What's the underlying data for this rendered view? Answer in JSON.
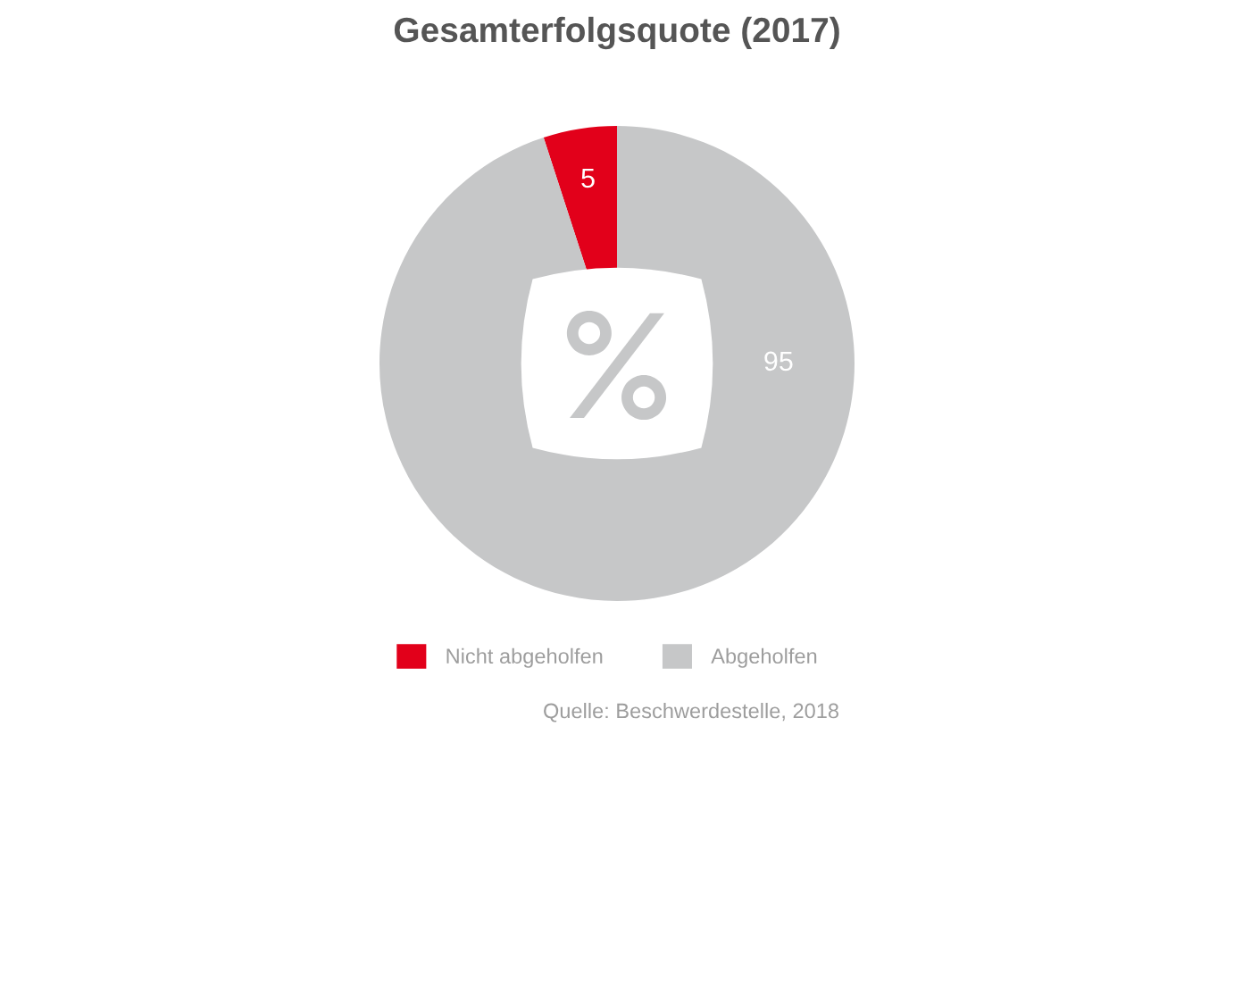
{
  "chart_data": {
    "type": "pie",
    "title": "Gesamterfolgsquote (2017)",
    "categories": [
      "Nicht abgeholfen",
      "Abgeholfen"
    ],
    "values": [
      5,
      95
    ],
    "colors": [
      "#e2001a",
      "#c6c7c8"
    ],
    "data_labels": true,
    "legend": "bottom",
    "annotations": [
      "Quelle: Beschwerdestelle, 2018"
    ]
  }
}
